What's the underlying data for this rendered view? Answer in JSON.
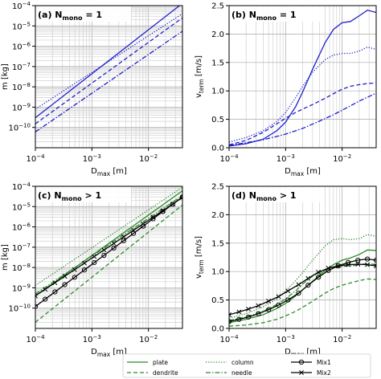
{
  "colors": {
    "blue": "#1f1fcc",
    "green": "#2a8a2a",
    "black": "#000000",
    "grid": "#bdbdbd"
  },
  "legend": {
    "items": [
      {
        "label": "plate",
        "color": "#2a8a2a",
        "dash": "solid",
        "marker": "none"
      },
      {
        "label": "dendrite",
        "color": "#2a8a2a",
        "dash": "dashed",
        "marker": "none"
      },
      {
        "label": "column",
        "color": "#2a8a2a",
        "dash": "dotted",
        "marker": "none"
      },
      {
        "label": "needle",
        "color": "#2a8a2a",
        "dash": "dashdot",
        "marker": "none"
      },
      {
        "label": "Mix1",
        "color": "#000000",
        "dash": "solid",
        "marker": "circle"
      },
      {
        "label": "Mix2",
        "color": "#000000",
        "dash": "solid",
        "marker": "x"
      }
    ]
  },
  "chart_data": [
    {
      "type": "line",
      "panel_label": "(a) N",
      "panel_sub": "mono",
      "panel_tail": " = 1",
      "ylabel": "m [kg]",
      "xlabel_main": "D",
      "xlabel_sub": "max",
      "xlabel_tail": " [m]",
      "xscale": "log",
      "yscale": "log",
      "xlim": [
        0.0001,
        0.04
      ],
      "ylim": [
        1e-11,
        0.0001
      ],
      "xticks": [
        0.0001,
        0.001,
        0.01
      ],
      "xticklabels": [
        [
          "10",
          "−4"
        ],
        [
          "10",
          "−3"
        ],
        [
          "10",
          "−2"
        ]
      ],
      "yticks": [
        1e-10,
        1e-09,
        1e-08,
        1e-07,
        1e-06,
        1e-05,
        0.0001
      ],
      "yticklabels": [
        [
          "10",
          "−10"
        ],
        [
          "10",
          "−9"
        ],
        [
          "10",
          "−8"
        ],
        [
          "10",
          "−7"
        ],
        [
          "10",
          "−6"
        ],
        [
          "10",
          "−5"
        ],
        [
          "10",
          "−4"
        ]
      ],
      "grid": true,
      "series": [
        {
          "color": "#1f1fcc",
          "dash": "solid",
          "marker": "none",
          "x": [
            0.0001,
            0.04
          ],
          "y": [
            3e-10,
            0.00013
          ]
        },
        {
          "color": "#1f1fcc",
          "dash": "dotted",
          "marker": "none",
          "x": [
            0.0001,
            0.04
          ],
          "y": [
            8e-10,
            4e-05
          ]
        },
        {
          "color": "#1f1fcc",
          "dash": "dashed",
          "marker": "none",
          "x": [
            0.0001,
            0.04
          ],
          "y": [
            1.5e-10,
            2.5e-05
          ]
        },
        {
          "color": "#1f1fcc",
          "dash": "dashdot",
          "marker": "none",
          "x": [
            0.0001,
            0.04
          ],
          "y": [
            6e-11,
            5.5e-06
          ]
        }
      ]
    },
    {
      "type": "line",
      "panel_label": "(b) N",
      "panel_sub": "mono",
      "panel_tail": " = 1",
      "ylabel_main": "v",
      "ylabel_sub": "term",
      "ylabel_tail": " [m/s]",
      "xlabel_main": "D",
      "xlabel_sub": "max",
      "xlabel_tail": " [m]",
      "xscale": "log",
      "yscale": "linear",
      "xlim": [
        0.0001,
        0.04
      ],
      "ylim": [
        0,
        2.5
      ],
      "xticks": [
        0.0001,
        0.001,
        0.01
      ],
      "xticklabels": [
        [
          "10",
          "−4"
        ],
        [
          "10",
          "−3"
        ],
        [
          "10",
          "−2"
        ]
      ],
      "yticks": [
        0.0,
        0.5,
        1.0,
        1.5,
        2.0,
        2.5
      ],
      "yticklabels": [
        "0.0",
        "0.5",
        "1.0",
        "1.5",
        "2.0",
        "2.5"
      ],
      "grid": true,
      "series": [
        {
          "color": "#1f1fcc",
          "dash": "solid",
          "marker": "none",
          "x": [
            0.0001,
            0.0002,
            0.0004,
            0.0007,
            0.001,
            0.0015,
            0.002,
            0.003,
            0.005,
            0.007,
            0.01,
            0.014,
            0.02,
            0.028,
            0.04
          ],
          "y": [
            0.03,
            0.07,
            0.15,
            0.3,
            0.45,
            0.72,
            0.98,
            1.38,
            1.85,
            2.08,
            2.2,
            2.22,
            2.32,
            2.42,
            2.38
          ]
        },
        {
          "color": "#1f1fcc",
          "dash": "dotted",
          "marker": "none",
          "x": [
            0.0001,
            0.0002,
            0.0004,
            0.0007,
            0.001,
            0.0015,
            0.002,
            0.003,
            0.005,
            0.007,
            0.01,
            0.014,
            0.02,
            0.028,
            0.04
          ],
          "y": [
            0.1,
            0.18,
            0.3,
            0.46,
            0.62,
            0.88,
            1.08,
            1.33,
            1.55,
            1.63,
            1.66,
            1.66,
            1.7,
            1.77,
            1.73
          ]
        },
        {
          "color": "#1f1fcc",
          "dash": "dashed",
          "marker": "none",
          "x": [
            0.0001,
            0.0002,
            0.0004,
            0.0007,
            0.001,
            0.0015,
            0.002,
            0.003,
            0.005,
            0.007,
            0.01,
            0.014,
            0.02,
            0.028,
            0.04
          ],
          "y": [
            0.05,
            0.13,
            0.27,
            0.42,
            0.52,
            0.62,
            0.68,
            0.76,
            0.87,
            0.95,
            1.03,
            1.08,
            1.11,
            1.13,
            1.14
          ]
        },
        {
          "color": "#1f1fcc",
          "dash": "dashdot",
          "marker": "none",
          "x": [
            0.0001,
            0.0002,
            0.0004,
            0.0007,
            0.001,
            0.002,
            0.004,
            0.007,
            0.01,
            0.02,
            0.04
          ],
          "y": [
            0.04,
            0.09,
            0.14,
            0.2,
            0.24,
            0.34,
            0.47,
            0.58,
            0.66,
            0.82,
            0.96
          ]
        }
      ]
    },
    {
      "type": "line",
      "panel_label": "(c) N",
      "panel_sub": "mono",
      "panel_tail": " > 1",
      "ylabel": "m [kg]",
      "xlabel_main": "D",
      "xlabel_sub": "max",
      "xlabel_tail": " [m]",
      "xscale": "log",
      "yscale": "log",
      "xlim": [
        0.0001,
        0.04
      ],
      "ylim": [
        1e-11,
        0.0001
      ],
      "xticks": [
        0.0001,
        0.001,
        0.01
      ],
      "xticklabels": [
        [
          "10",
          "−4"
        ],
        [
          "10",
          "−3"
        ],
        [
          "10",
          "−2"
        ]
      ],
      "yticks": [
        1e-10,
        1e-09,
        1e-08,
        1e-07,
        1e-06,
        1e-05,
        0.0001
      ],
      "yticklabels": [
        [
          "10",
          "−10"
        ],
        [
          "10",
          "−9"
        ],
        [
          "10",
          "−8"
        ],
        [
          "10",
          "−7"
        ],
        [
          "10",
          "−6"
        ],
        [
          "10",
          "−5"
        ],
        [
          "10",
          "−4"
        ]
      ],
      "grid": true,
      "series": [
        {
          "color": "#2a8a2a",
          "dash": "solid",
          "marker": "none",
          "x": [
            0.0001,
            0.04
          ],
          "y": [
            4e-10,
            6e-05
          ]
        },
        {
          "color": "#2a8a2a",
          "dash": "dashed",
          "marker": "none",
          "x": [
            0.0001,
            0.04
          ],
          "y": [
            2e-11,
            1.2e-05
          ]
        },
        {
          "color": "#2a8a2a",
          "dash": "dotted",
          "marker": "none",
          "x": [
            0.0001,
            0.04
          ],
          "y": [
            1.3e-09,
            9e-05
          ]
        },
        {
          "color": "#2a8a2a",
          "dash": "dashdot",
          "marker": "none",
          "x": [
            0.0001,
            0.04
          ],
          "y": [
            5e-10,
            3.5e-05
          ]
        },
        {
          "color": "#000000",
          "dash": "solid",
          "marker": "circle",
          "x": [
            0.0001,
            0.04
          ],
          "y": [
            1.2e-10,
            3e-05
          ]
        },
        {
          "color": "#000000",
          "dash": "solid",
          "marker": "x",
          "x": [
            0.0001,
            0.04
          ],
          "y": [
            4e-10,
            2.8e-05
          ]
        }
      ]
    },
    {
      "type": "line",
      "panel_label": "(d) N",
      "panel_sub": "mono",
      "panel_tail": " > 1",
      "ylabel_main": "v",
      "ylabel_sub": "term",
      "ylabel_tail": " [m/s]",
      "xlabel_main": "D",
      "xlabel_sub": "max",
      "xlabel_tail": " [m]",
      "xscale": "log",
      "yscale": "linear",
      "xlim": [
        0.0001,
        0.04
      ],
      "ylim": [
        0,
        2.5
      ],
      "xticks": [
        0.0001,
        0.001,
        0.01
      ],
      "xticklabels": [
        [
          "10",
          "−4"
        ],
        [
          "10",
          "−3"
        ],
        [
          "10",
          "−2"
        ]
      ],
      "yticks": [
        0.0,
        0.5,
        1.0,
        1.5,
        2.0,
        2.5
      ],
      "yticklabels": [
        "0.0",
        "0.5",
        "1.0",
        "1.5",
        "2.0",
        "2.5"
      ],
      "grid": true,
      "series": [
        {
          "color": "#2a8a2a",
          "dash": "solid",
          "marker": "none",
          "x": [
            0.0001,
            0.0002,
            0.0004,
            0.0007,
            0.001,
            0.0015,
            0.002,
            0.003,
            0.005,
            0.007,
            0.01,
            0.014,
            0.02,
            0.028,
            0.04
          ],
          "y": [
            0.1,
            0.16,
            0.24,
            0.35,
            0.44,
            0.57,
            0.68,
            0.83,
            1.02,
            1.12,
            1.2,
            1.24,
            1.3,
            1.38,
            1.37
          ]
        },
        {
          "color": "#2a8a2a",
          "dash": "dashed",
          "marker": "none",
          "x": [
            0.0001,
            0.0002,
            0.0004,
            0.0007,
            0.001,
            0.0015,
            0.002,
            0.003,
            0.005,
            0.007,
            0.01,
            0.014,
            0.02,
            0.028,
            0.04
          ],
          "y": [
            0.04,
            0.06,
            0.1,
            0.16,
            0.22,
            0.3,
            0.37,
            0.48,
            0.62,
            0.7,
            0.76,
            0.8,
            0.84,
            0.87,
            0.86
          ]
        },
        {
          "color": "#2a8a2a",
          "dash": "dotted",
          "marker": "none",
          "x": [
            0.0001,
            0.0002,
            0.0004,
            0.0007,
            0.001,
            0.0015,
            0.002,
            0.003,
            0.005,
            0.007,
            0.01,
            0.014,
            0.02,
            0.028,
            0.04
          ],
          "y": [
            0.18,
            0.26,
            0.38,
            0.52,
            0.66,
            0.84,
            0.98,
            1.2,
            1.45,
            1.56,
            1.58,
            1.56,
            1.58,
            1.65,
            1.62
          ]
        },
        {
          "color": "#2a8a2a",
          "dash": "dashdot",
          "marker": "none",
          "x": [
            0.0001,
            0.0002,
            0.0004,
            0.0007,
            0.001,
            0.0015,
            0.002,
            0.003,
            0.005,
            0.007,
            0.01,
            0.014,
            0.02,
            0.028,
            0.04
          ],
          "y": [
            0.14,
            0.2,
            0.3,
            0.42,
            0.52,
            0.66,
            0.78,
            0.92,
            1.03,
            1.07,
            1.09,
            1.1,
            1.12,
            1.14,
            1.12
          ]
        },
        {
          "color": "#000000",
          "dash": "solid",
          "marker": "circle",
          "x": [
            0.0001,
            0.00015,
            0.00022,
            0.00033,
            0.0005,
            0.00075,
            0.0011,
            0.0017,
            0.0025,
            0.0038,
            0.0057,
            0.0085,
            0.0128,
            0.019,
            0.028,
            0.04
          ],
          "y": [
            0.12,
            0.16,
            0.2,
            0.26,
            0.33,
            0.41,
            0.5,
            0.62,
            0.76,
            0.9,
            1.02,
            1.1,
            1.16,
            1.2,
            1.22,
            1.2
          ]
        },
        {
          "color": "#000000",
          "dash": "solid",
          "marker": "x",
          "x": [
            0.0001,
            0.00015,
            0.00022,
            0.00033,
            0.0005,
            0.00075,
            0.0011,
            0.0017,
            0.0025,
            0.0038,
            0.0057,
            0.0085,
            0.0128,
            0.019,
            0.028,
            0.04
          ],
          "y": [
            0.24,
            0.29,
            0.34,
            0.4,
            0.48,
            0.56,
            0.66,
            0.77,
            0.88,
            0.99,
            1.06,
            1.1,
            1.12,
            1.13,
            1.12,
            1.1
          ]
        }
      ]
    }
  ]
}
